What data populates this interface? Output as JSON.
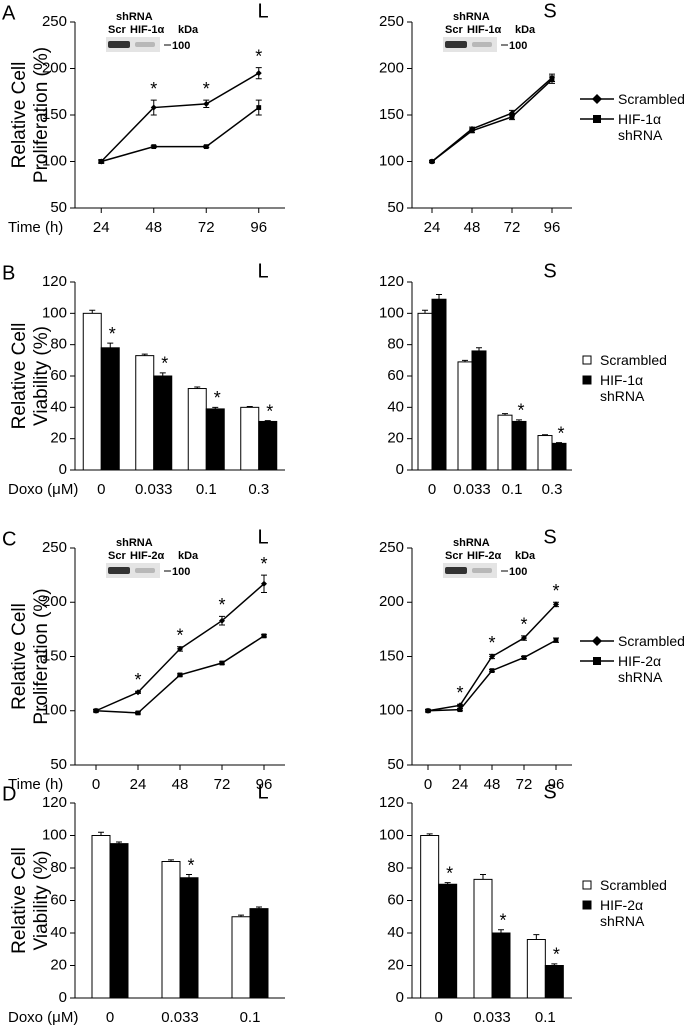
{
  "chart_data": [
    {
      "type": "line",
      "panel": "A",
      "title": "L",
      "ylabel": [
        "Relative Cell",
        "Proliferation (%)"
      ],
      "xlabel": "Time (h)",
      "categories": [
        "24",
        "48",
        "72",
        "96"
      ],
      "ylim": [
        50,
        250
      ],
      "yticks": [
        50,
        100,
        150,
        200,
        250
      ],
      "inset": {
        "header": "shRNA",
        "lanes": [
          "Scr",
          "HIF-1α"
        ],
        "unit": "kDa",
        "marker": "100"
      },
      "series": [
        {
          "color": "#000000",
          "marker": "diamond",
          "values": [
            100,
            158,
            162,
            195
          ],
          "errors": [
            2,
            8,
            4,
            6
          ],
          "stars": [
            null,
            "*",
            "*",
            "*"
          ]
        },
        {
          "color": "#000000",
          "marker": "square",
          "values": [
            100,
            116,
            116,
            158
          ],
          "errors": [
            1,
            1,
            1,
            8
          ]
        }
      ]
    },
    {
      "type": "line",
      "title": "S",
      "legend": "right",
      "categories": [
        "24",
        "48",
        "72",
        "96"
      ],
      "ylim": [
        50,
        250
      ],
      "yticks": [
        50,
        100,
        150,
        200,
        250
      ],
      "inset": {
        "header": "shRNA",
        "lanes": [
          "Scr",
          "HIF-1α"
        ],
        "unit": "kDa",
        "marker": "100"
      },
      "series": [
        {
          "name": "Scrambled",
          "color": "#000000",
          "marker": "diamond",
          "values": [
            100,
            135,
            152,
            190
          ],
          "errors": [
            1,
            2,
            3,
            4
          ]
        },
        {
          "name": "HIF-1α shRNA",
          "color": "#000000",
          "marker": "square",
          "values": [
            100,
            133,
            148,
            188
          ],
          "errors": [
            1,
            2,
            3,
            4
          ]
        }
      ]
    },
    {
      "type": "bar",
      "panel": "B",
      "title": "L",
      "ylabel": [
        "Relative Cell",
        "Viability (%)"
      ],
      "xlabel": "Doxo (μM)",
      "categories": [
        "0",
        "0.033",
        "0.1",
        "0.3"
      ],
      "ylim": [
        0,
        120
      ],
      "yticks": [
        0,
        20,
        40,
        60,
        80,
        100,
        120
      ],
      "series": [
        {
          "color": "#ffffff",
          "values": [
            100,
            73,
            52,
            40
          ],
          "errors": [
            2,
            1,
            1,
            0.5
          ]
        },
        {
          "color": "#000000",
          "values": [
            78,
            60,
            39,
            31
          ],
          "errors": [
            3,
            2,
            1,
            0.5
          ],
          "stars": [
            "*",
            "*",
            "*",
            "*"
          ]
        }
      ]
    },
    {
      "type": "bar",
      "title": "S",
      "legend": "right",
      "categories": [
        "0",
        "0.033",
        "0.1",
        "0.3"
      ],
      "ylim": [
        0,
        120
      ],
      "yticks": [
        0,
        20,
        40,
        60,
        80,
        100,
        120
      ],
      "series": [
        {
          "name": "Scrambled",
          "color": "#ffffff",
          "values": [
            100,
            69,
            35,
            22
          ],
          "errors": [
            2,
            1,
            1,
            0.5
          ]
        },
        {
          "name": "HIF-1α shRNA",
          "color": "#000000",
          "values": [
            109,
            76,
            31,
            17
          ],
          "errors": [
            3,
            2,
            1,
            0.5
          ],
          "stars": [
            null,
            null,
            "*",
            "*"
          ]
        }
      ]
    },
    {
      "type": "line",
      "panel": "C",
      "title": "L",
      "ylabel": [
        "Relative Cell",
        "Proliferation (%)"
      ],
      "xlabel": "Time (h)",
      "categories": [
        "0",
        "24",
        "48",
        "72",
        "96"
      ],
      "ylim": [
        50,
        250
      ],
      "yticks": [
        50,
        100,
        150,
        200,
        250
      ],
      "inset": {
        "header": "shRNA",
        "lanes": [
          "Scr",
          "HIF-2α"
        ],
        "unit": "kDa",
        "marker": "100"
      },
      "series": [
        {
          "color": "#000000",
          "marker": "diamond",
          "values": [
            100,
            117,
            157,
            183,
            217
          ],
          "errors": [
            1,
            1,
            2,
            4,
            8
          ],
          "stars": [
            null,
            "*",
            "*",
            "*",
            "*"
          ]
        },
        {
          "color": "#000000",
          "marker": "square",
          "values": [
            100,
            98,
            133,
            144,
            169
          ],
          "errors": [
            1,
            1,
            1,
            1,
            1
          ]
        }
      ]
    },
    {
      "type": "line",
      "title": "S",
      "legend": "right",
      "categories": [
        "0",
        "24",
        "48",
        "72",
        "96"
      ],
      "ylim": [
        50,
        250
      ],
      "yticks": [
        50,
        100,
        150,
        200,
        250
      ],
      "inset": {
        "header": "shRNA",
        "lanes": [
          "Scr",
          "HIF-2α"
        ],
        "unit": "kDa",
        "marker": "100"
      },
      "series": [
        {
          "name": "Scrambled",
          "color": "#000000",
          "marker": "diamond",
          "values": [
            100,
            105,
            150,
            167,
            198
          ],
          "errors": [
            1,
            1,
            2,
            2,
            2
          ],
          "stars": [
            null,
            "*",
            "*",
            "*",
            "*"
          ]
        },
        {
          "name": "HIF-2α shRNA",
          "color": "#000000",
          "marker": "square",
          "values": [
            100,
            101,
            137,
            149,
            165
          ],
          "errors": [
            1,
            1,
            1,
            1,
            2
          ]
        }
      ]
    },
    {
      "type": "bar",
      "panel": "D",
      "title": "L",
      "ylabel": [
        "Relative Cell",
        "Viability (%)"
      ],
      "xlabel": "Doxo (μM)",
      "categories": [
        "0",
        "0.033",
        "0.1"
      ],
      "ylim": [
        0,
        120
      ],
      "yticks": [
        0,
        20,
        40,
        60,
        80,
        100,
        120
      ],
      "series": [
        {
          "color": "#ffffff",
          "values": [
            100,
            84,
            50
          ],
          "errors": [
            2,
            1,
            1
          ]
        },
        {
          "color": "#000000",
          "values": [
            95,
            74,
            55
          ],
          "errors": [
            1,
            2,
            1
          ],
          "stars": [
            null,
            "*",
            null
          ]
        }
      ]
    },
    {
      "type": "bar",
      "title": "S",
      "legend": "right",
      "categories": [
        "0",
        "0.033",
        "0.1"
      ],
      "ylim": [
        0,
        120
      ],
      "yticks": [
        0,
        20,
        40,
        60,
        80,
        100,
        120
      ],
      "series": [
        {
          "name": "Scrambled",
          "color": "#ffffff",
          "values": [
            100,
            73,
            36
          ],
          "errors": [
            1,
            3,
            3
          ]
        },
        {
          "name": "HIF-2α shRNA",
          "color": "#000000",
          "values": [
            70,
            40,
            20
          ],
          "errors": [
            1,
            2,
            1
          ],
          "stars": [
            "*",
            "*",
            "*"
          ]
        }
      ]
    }
  ]
}
